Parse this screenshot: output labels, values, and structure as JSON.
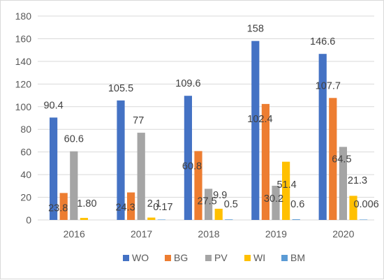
{
  "chart_data": {
    "type": "bar",
    "categories": [
      "2016",
      "2017",
      "2018",
      "2019",
      "2020"
    ],
    "series": [
      {
        "name": "WO",
        "color": "#4472C4",
        "values": [
          90.4,
          105.5,
          109.6,
          158,
          146.6
        ],
        "labels": [
          "90.4",
          "105.5",
          "109.6",
          "158",
          "146.6"
        ]
      },
      {
        "name": "BG",
        "color": "#ED7D31",
        "values": [
          23.8,
          24.3,
          60.8,
          102.4,
          107.7
        ],
        "labels": [
          "23.8",
          "24.3",
          "60.8",
          "102.4",
          "107.7"
        ]
      },
      {
        "name": "PV",
        "color": "#A5A5A5",
        "values": [
          60.6,
          77,
          27.5,
          30.2,
          64.5
        ],
        "labels": [
          "60.6",
          "77",
          "27.5",
          "30.2",
          "64.5"
        ]
      },
      {
        "name": "WI",
        "color": "#FFC000",
        "values": [
          1.8,
          2.1,
          9.9,
          51.4,
          21.3
        ],
        "labels": [
          "1.80",
          "2.1",
          "9.9",
          "51.4",
          "21.3"
        ]
      },
      {
        "name": "BM",
        "color": "#5B9BD5",
        "values": [
          0,
          0.17,
          0.5,
          0.6,
          0.006
        ],
        "labels": [
          "",
          "0.17",
          "0.5",
          "0.6",
          "0.006"
        ]
      }
    ],
    "yticks": [
      "0",
      "20",
      "40",
      "60",
      "80",
      "100",
      "120",
      "140",
      "160",
      "180"
    ],
    "ylim": [
      0,
      180
    ],
    "grid": true,
    "legend_position": "bottom"
  }
}
